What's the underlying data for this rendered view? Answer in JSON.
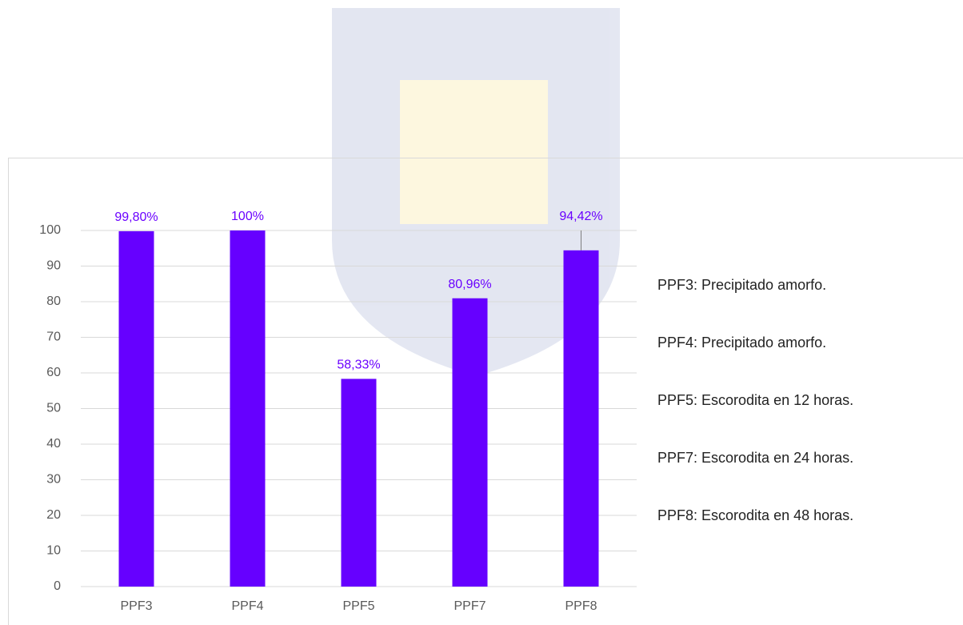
{
  "chart_data": {
    "type": "bar",
    "categories": [
      "PPF3",
      "PPF4",
      "PPF5",
      "PPF7",
      "PPF8"
    ],
    "values": [
      99.8,
      100,
      58.33,
      80.96,
      94.42
    ],
    "value_labels": [
      "99,80%",
      "100%",
      "58,33%",
      "80,96%",
      "94,42%"
    ],
    "errors": [
      null,
      null,
      null,
      null,
      5.58
    ],
    "color": "#6600ff",
    "ylim": [
      0,
      100
    ],
    "yticks": [
      0,
      10,
      20,
      30,
      40,
      50,
      60,
      70,
      80,
      90,
      100
    ],
    "grid": true,
    "annotations": [
      "PPF3: Precipitado amorfo.",
      "PPF4: Precipitado amorfo.",
      "PPF5: Escorodita en 12 horas.",
      "PPF7: Escorodita en 24 horas.",
      "PPF8: Escorodita en 48 horas."
    ]
  }
}
